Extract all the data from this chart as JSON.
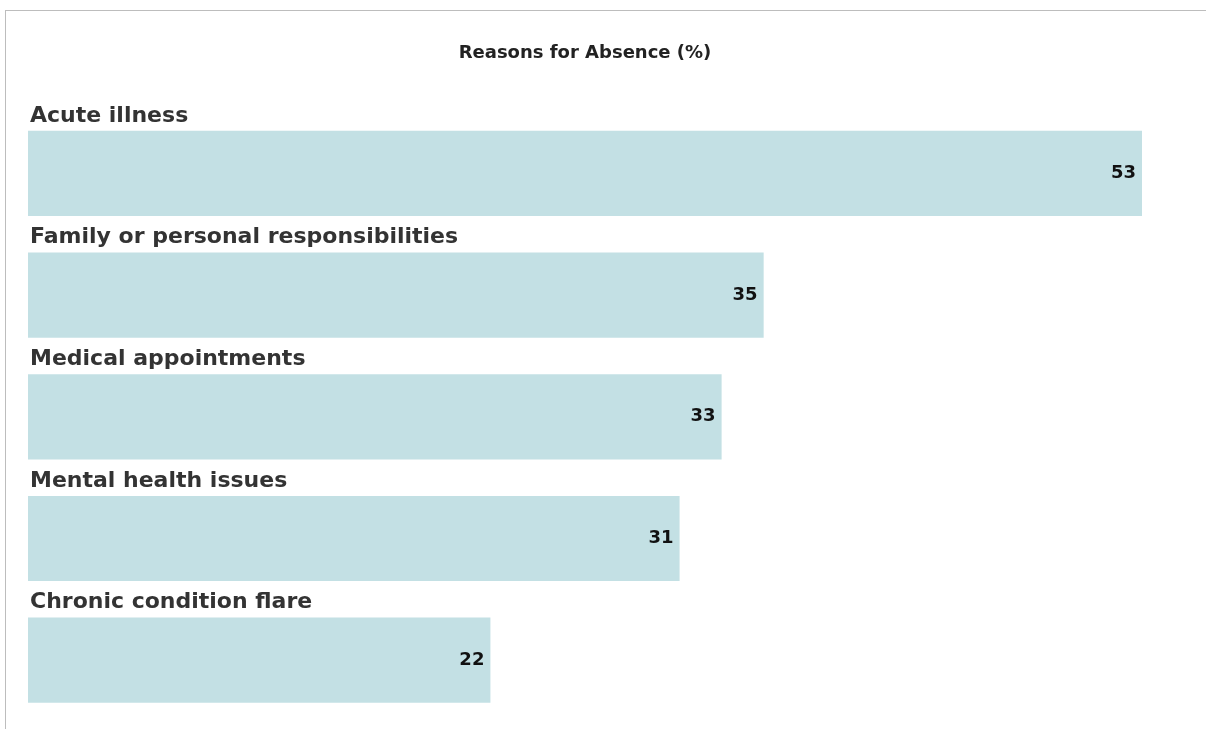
{
  "chart_data": {
    "type": "bar",
    "orientation": "horizontal",
    "title": "Reasons for Absence (%)",
    "categories": [
      "Acute illness",
      "Family or personal responsibilities",
      "Medical appointments",
      "Mental health issues",
      "Chronic condition flare"
    ],
    "values": [
      53,
      35,
      33,
      31,
      22
    ],
    "color": "#c3e0e4",
    "data_labels": true,
    "legend": false
  }
}
